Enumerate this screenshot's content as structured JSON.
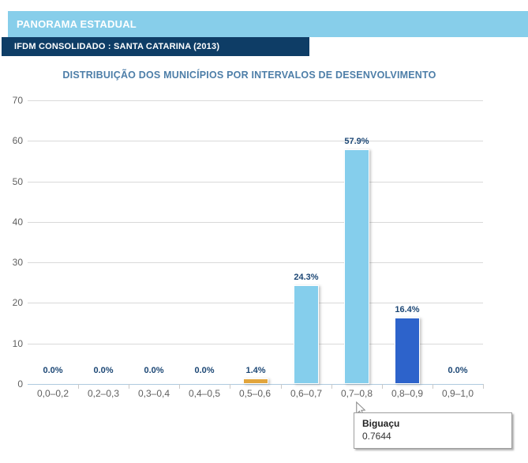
{
  "header": {
    "panorama_label": "PANORAMA ESTADUAL",
    "subheader_label": "IFDM CONSOLIDADO : SANTA CATARINA (2013)"
  },
  "chart_data": {
    "type": "bar",
    "title": "DISTRIBUIÇÃO DOS MUNICÍPIOS POR INTERVALOS DE DESENVOLVIMENTO",
    "categories": [
      "0,0–0,2",
      "0,2–0,3",
      "0,3–0,4",
      "0,4–0,5",
      "0,5–0,6",
      "0,6–0,7",
      "0,7–0,8",
      "0,8–0,9",
      "0,9–1,0"
    ],
    "values": [
      0.0,
      0.0,
      0.0,
      0.0,
      1.4,
      24.3,
      57.9,
      16.4,
      0.0
    ],
    "value_labels": [
      "0.0%",
      "0.0%",
      "0.0%",
      "0.0%",
      "1.4%",
      "24.3%",
      "57.9%",
      "16.4%",
      "0.0%"
    ],
    "bar_colors": [
      "#85CEEC",
      "#85CEEC",
      "#85CEEC",
      "#85CEEC",
      "#E2A53C",
      "#85CEEC",
      "#85CEEC",
      "#2D63CB",
      "#85CEEC"
    ],
    "xlabel": "",
    "ylabel": "",
    "ylim": [
      0,
      70
    ],
    "yticks": [
      0,
      10,
      20,
      30,
      40,
      50,
      60,
      70
    ],
    "grid": "horizontal",
    "legend": "none"
  },
  "tooltip": {
    "name": "Biguaçu",
    "value": "0.7644"
  },
  "colors": {
    "header_light": "#87CEEA",
    "header_dark": "#0E3D66",
    "title_text": "#4D7EA8",
    "bar_light_blue": "#85CEEC",
    "bar_dark_blue": "#2D63CB",
    "bar_gold": "#E2A53C",
    "value_label_text": "#1C4775",
    "axis_text": "#606060"
  }
}
